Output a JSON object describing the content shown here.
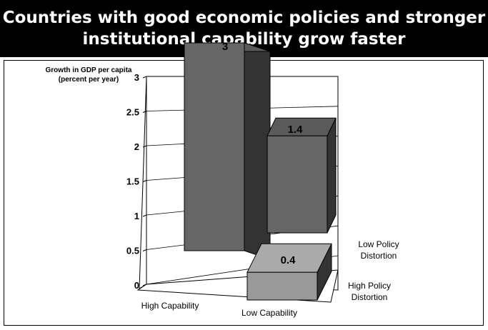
{
  "chart_data": {
    "type": "bar",
    "title": [
      "Countries with good economic policies and stronger",
      "institutional capability grow faster"
    ],
    "ylabel": [
      "Growth in GDP per capita",
      "(percent per year)"
    ],
    "ylim": [
      0,
      3
    ],
    "yticks": [
      "0",
      "0.5",
      "1",
      "1.5",
      "2",
      "2.5",
      "3"
    ],
    "categories": [
      "High Capability",
      "Low Capability"
    ],
    "series_labels": [
      [
        "Low  Policy",
        "Distortion"
      ],
      [
        "High Policy",
        "Distortion"
      ]
    ],
    "bars": [
      {
        "capability": "High Capability",
        "policy": "Low Policy Distortion",
        "value": 3,
        "label": "3",
        "color": "#666666"
      },
      {
        "capability": "Low Capability",
        "policy": "Low Policy Distortion",
        "value": 1.4,
        "label": "1.4",
        "color": "#666666"
      },
      {
        "capability": "Low Capability",
        "policy": "High Policy Distortion",
        "value": 0.4,
        "label": "0.4",
        "color": "#999999"
      }
    ]
  }
}
